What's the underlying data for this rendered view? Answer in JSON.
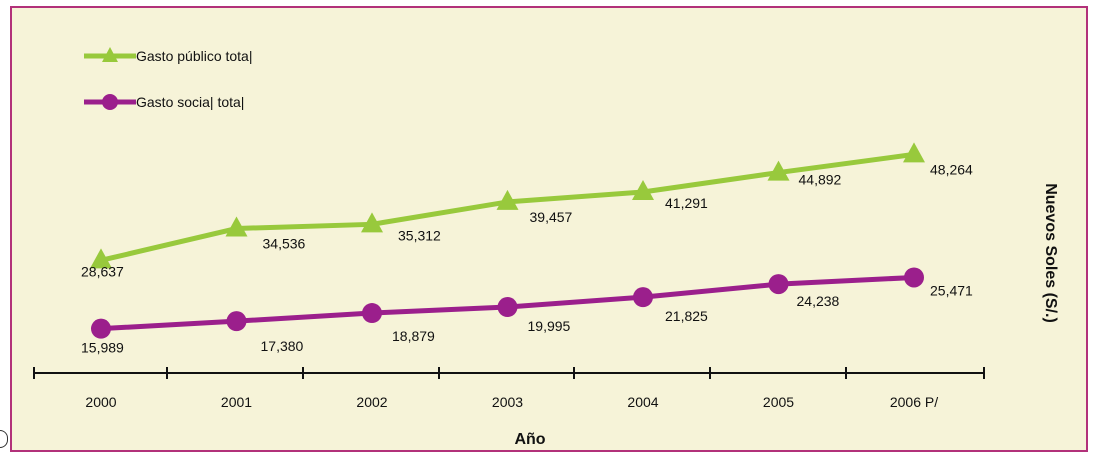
{
  "chart_data": {
    "type": "line",
    "xlabel": "Año",
    "ylabel": "Nuevos Soles (S/.)",
    "categories": [
      "2000",
      "2001",
      "2002",
      "2003",
      "2004",
      "2005",
      "2006  P/"
    ],
    "ylim": [
      0,
      60000
    ],
    "grid": false,
    "legend_position": "top-left",
    "series": [
      {
        "name": "Gasto público total",
        "values": [
          28637,
          34536,
          35312,
          39457,
          41291,
          44892,
          48264
        ],
        "labels": [
          "28,637",
          "34,536",
          "35,312",
          "39,457",
          "41,291",
          "44,892",
          "48,264"
        ],
        "color": "#98c93c",
        "marker": "triangle"
      },
      {
        "name": "Gasto socia| tota|",
        "values": [
          15989,
          17380,
          18879,
          19995,
          21825,
          24238,
          25471
        ],
        "labels": [
          "15,989",
          "17,380",
          "18,879",
          "19,995",
          "21,825",
          "24,238",
          "25,471"
        ],
        "color": "#9b1f8c",
        "marker": "circle"
      }
    ],
    "legend": [
      "Gasto público tota|",
      "Gasto socia| tota|"
    ]
  },
  "colors": {
    "background": "#f6f3d8",
    "border": "#b2317a",
    "axis": "#111111"
  }
}
